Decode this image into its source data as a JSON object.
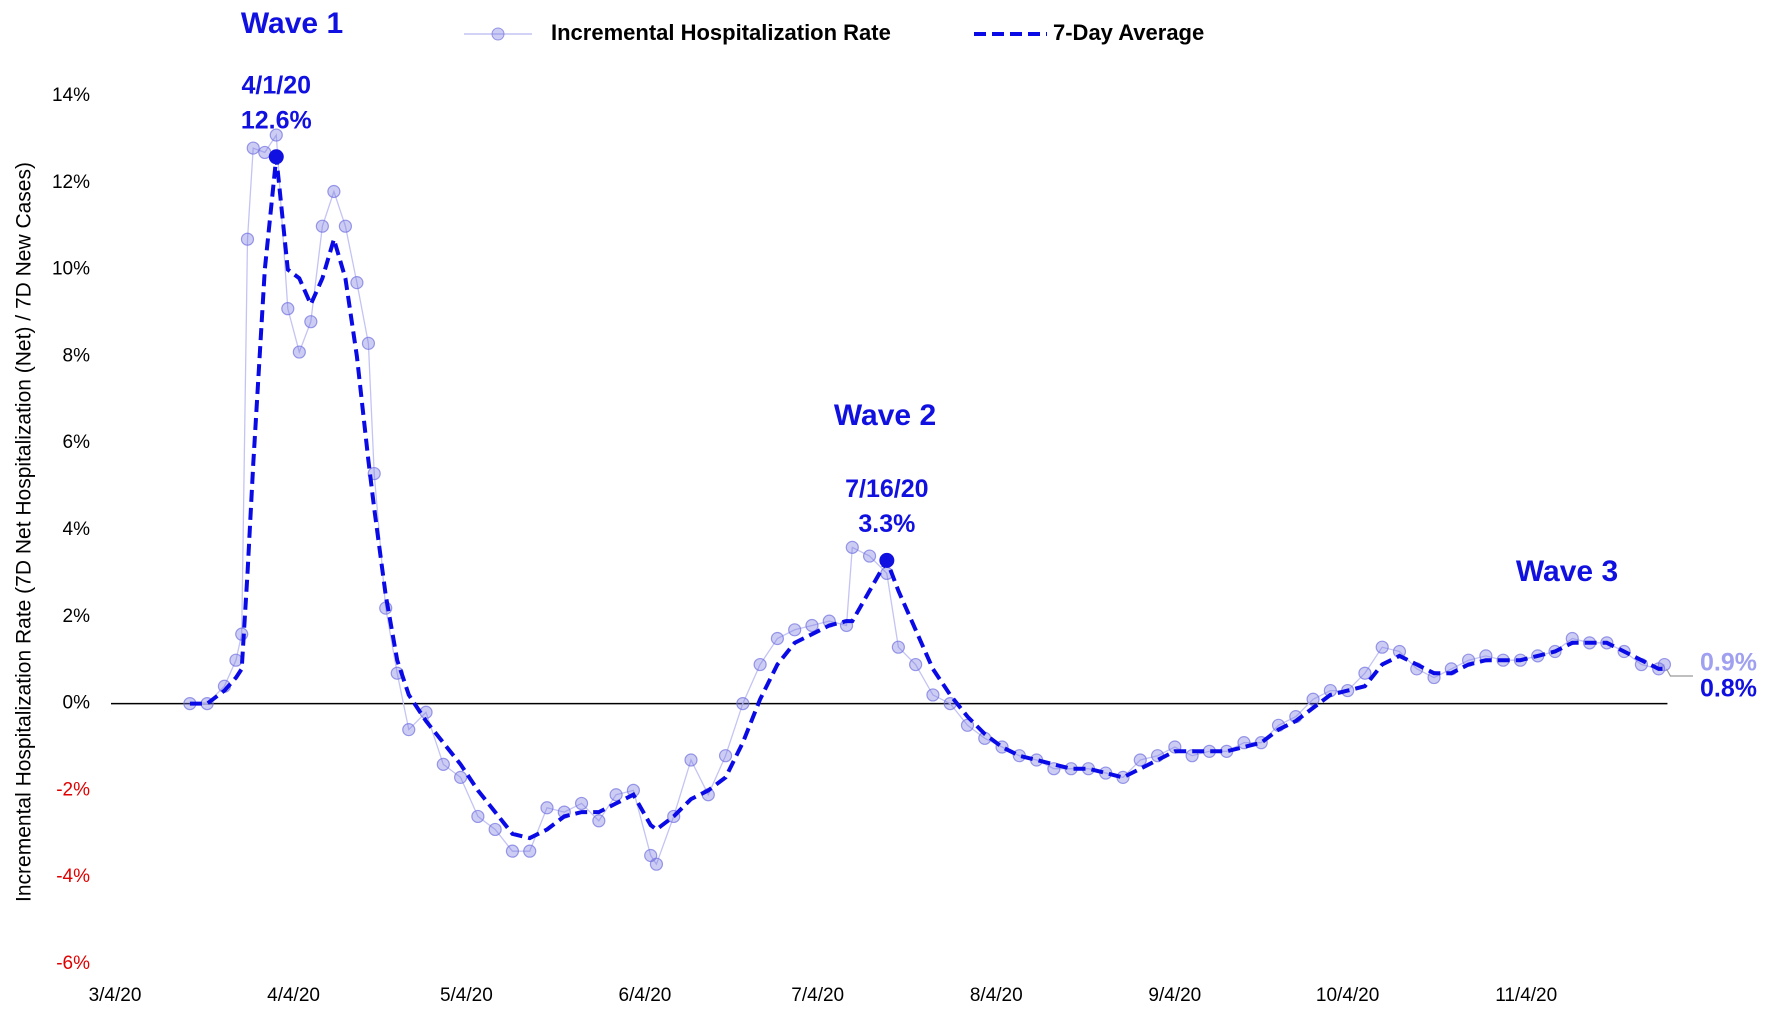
{
  "chart_data": {
    "type": "line",
    "y_axis_label": "Incremental Hospitalization Rate (7D Net Hospitalization (Net) / 7D New Cases)",
    "x": [
      "3/17/20",
      "3/20/20",
      "3/23/20",
      "3/25/20",
      "3/26/20",
      "3/27/20",
      "3/28/20",
      "3/30/20",
      "4/1/20",
      "4/3/20",
      "4/5/20",
      "4/7/20",
      "4/9/20",
      "4/11/20",
      "4/13/20",
      "4/15/20",
      "4/17/20",
      "4/18/20",
      "4/20/20",
      "4/22/20",
      "4/24/20",
      "4/27/20",
      "4/30/20",
      "5/3/20",
      "5/6/20",
      "5/9/20",
      "5/12/20",
      "5/15/20",
      "5/18/20",
      "5/21/20",
      "5/24/20",
      "5/27/20",
      "5/30/20",
      "6/2/20",
      "6/5/20",
      "6/6/20",
      "6/9/20",
      "6/12/20",
      "6/15/20",
      "6/18/20",
      "6/21/20",
      "6/24/20",
      "6/27/20",
      "6/30/20",
      "7/3/20",
      "7/6/20",
      "7/9/20",
      "7/10/20",
      "7/13/20",
      "7/16/20",
      "7/18/20",
      "7/21/20",
      "7/24/20",
      "7/27/20",
      "7/30/20",
      "8/2/20",
      "8/5/20",
      "8/8/20",
      "8/11/20",
      "8/14/20",
      "8/17/20",
      "8/20/20",
      "8/23/20",
      "8/26/20",
      "8/29/20",
      "9/1/20",
      "9/4/20",
      "9/7/20",
      "9/10/20",
      "9/13/20",
      "9/16/20",
      "9/19/20",
      "9/22/20",
      "9/25/20",
      "9/28/20",
      "10/1/20",
      "10/4/20",
      "10/7/20",
      "10/10/20",
      "10/13/20",
      "10/16/20",
      "10/19/20",
      "10/22/20",
      "10/25/20",
      "10/28/20",
      "10/31/20",
      "11/3/20",
      "11/6/20",
      "11/9/20",
      "11/12/20",
      "11/15/20",
      "11/18/20",
      "11/21/20",
      "11/24/20",
      "11/27/20",
      "11/28/20"
    ],
    "series": [
      {
        "name": "Incremental Hospitalization Rate",
        "color": "#7070e0",
        "style": "markers",
        "values": [
          0,
          0,
          0.4,
          1.0,
          1.6,
          10.7,
          12.8,
          12.7,
          13.1,
          9.1,
          8.1,
          8.8,
          11.0,
          11.8,
          11.0,
          9.7,
          8.3,
          5.3,
          2.2,
          0.7,
          -0.6,
          -0.2,
          -1.4,
          -1.7,
          -2.6,
          -2.9,
          -3.4,
          -3.4,
          -2.4,
          -2.5,
          -2.3,
          -2.7,
          -2.1,
          -2.0,
          -3.5,
          -3.7,
          -2.6,
          -1.3,
          -2.1,
          -1.2,
          0.0,
          0.9,
          1.5,
          1.7,
          1.8,
          1.9,
          1.8,
          3.6,
          3.4,
          3.0,
          1.3,
          0.9,
          0.2,
          0.0,
          -0.5,
          -0.8,
          -1.0,
          -1.2,
          -1.3,
          -1.5,
          -1.5,
          -1.5,
          -1.6,
          -1.7,
          -1.3,
          -1.2,
          -1.0,
          -1.2,
          -1.1,
          -1.1,
          -0.9,
          -0.9,
          -0.5,
          -0.3,
          0.1,
          0.3,
          0.3,
          0.7,
          1.3,
          1.2,
          0.8,
          0.6,
          0.8,
          1.0,
          1.1,
          1.0,
          1.0,
          1.1,
          1.2,
          1.5,
          1.4,
          1.4,
          1.2,
          0.9,
          0.8,
          0.9
        ]
      },
      {
        "name": "7-Day Average",
        "color": "#0a0ae6",
        "style": "dashed",
        "values": [
          0,
          0,
          0.3,
          0.6,
          0.8,
          3.0,
          5.5,
          10.0,
          12.6,
          10.0,
          9.8,
          9.2,
          9.8,
          10.7,
          9.8,
          8.0,
          5.6,
          4.5,
          2.5,
          1.0,
          0.2,
          -0.4,
          -0.9,
          -1.4,
          -2.0,
          -2.5,
          -3.0,
          -3.1,
          -2.9,
          -2.6,
          -2.5,
          -2.5,
          -2.3,
          -2.1,
          -2.8,
          -2.9,
          -2.6,
          -2.2,
          -2.0,
          -1.7,
          -0.9,
          0.1,
          0.9,
          1.4,
          1.6,
          1.8,
          1.9,
          1.9,
          2.6,
          3.3,
          2.6,
          1.7,
          0.8,
          0.2,
          -0.3,
          -0.7,
          -1.0,
          -1.2,
          -1.3,
          -1.4,
          -1.5,
          -1.5,
          -1.6,
          -1.7,
          -1.5,
          -1.3,
          -1.1,
          -1.1,
          -1.1,
          -1.1,
          -1.0,
          -0.9,
          -0.6,
          -0.4,
          -0.1,
          0.2,
          0.3,
          0.4,
          0.9,
          1.1,
          0.9,
          0.7,
          0.7,
          0.9,
          1.0,
          1.0,
          1.0,
          1.1,
          1.2,
          1.4,
          1.4,
          1.4,
          1.2,
          1.0,
          0.8,
          0.8
        ]
      }
    ],
    "xlim": [
      "3/4/20",
      "12/4/20"
    ],
    "xticks": [
      "3/4/20",
      "4/4/20",
      "5/4/20",
      "6/4/20",
      "7/4/20",
      "8/4/20",
      "9/4/20",
      "10/4/20",
      "11/4/20"
    ],
    "ylim": [
      -6,
      14
    ],
    "yticks": [
      {
        "value": -6,
        "label": "-6%"
      },
      {
        "value": -4,
        "label": "-4%"
      },
      {
        "value": -2,
        "label": "-2%"
      },
      {
        "value": 0,
        "label": "0%"
      },
      {
        "value": 2,
        "label": "2%"
      },
      {
        "value": 4,
        "label": "4%"
      },
      {
        "value": 6,
        "label": "6%"
      },
      {
        "value": 8,
        "label": "8%"
      },
      {
        "value": 10,
        "label": "10%"
      },
      {
        "value": 12,
        "label": "12%"
      },
      {
        "value": 14,
        "label": "14%"
      }
    ],
    "negative_tick_color": "#e00000",
    "annotation_color": "#1010e0",
    "wave_labels": [
      "Wave 1",
      "Wave 2",
      "Wave 3"
    ],
    "peaks": [
      {
        "x": "4/1/20",
        "value": 12.6,
        "label": "12.6%"
      },
      {
        "x": "7/16/20",
        "value": 3.3,
        "label": "3.3%"
      }
    ],
    "end_labels": [
      {
        "value": 0.9,
        "label": "0.9%",
        "color": "#a0a0f0"
      },
      {
        "value": 0.8,
        "label": "0.8%",
        "color": "#1010e0"
      }
    ]
  }
}
